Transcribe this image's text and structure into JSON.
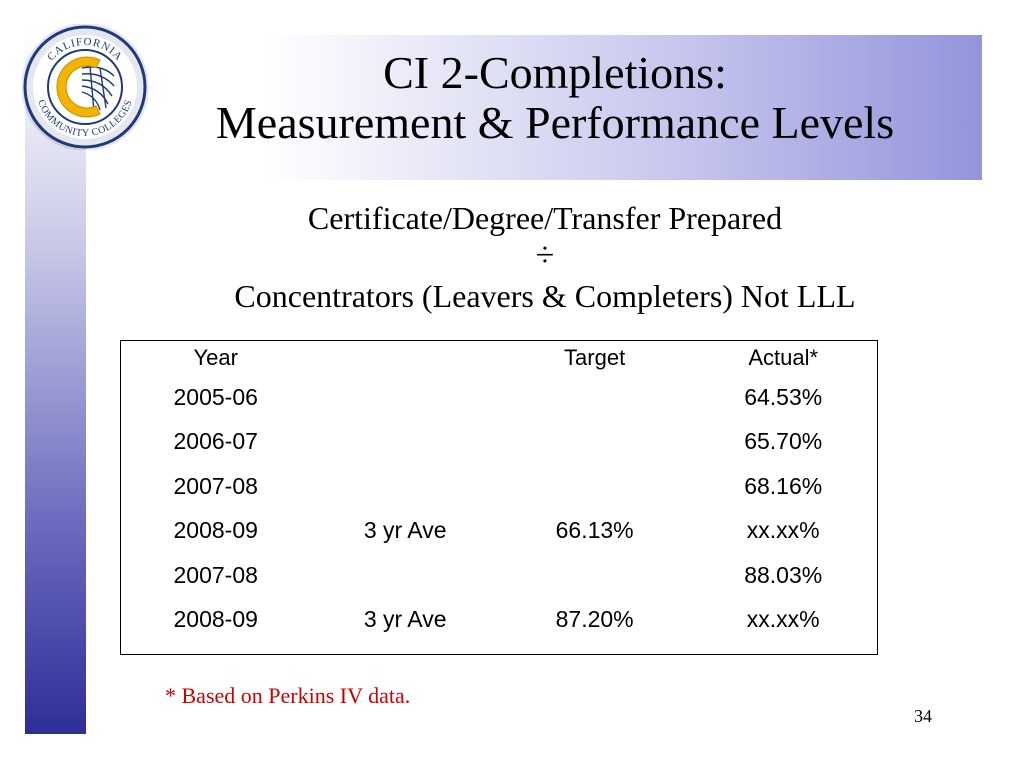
{
  "logo": {
    "text_top": "CALIFORNIA",
    "text_bottom": "COMMUNITY COLLEGES",
    "colors": {
      "ring": "#1f3a7a",
      "c_mark": "#f2b400"
    }
  },
  "title": {
    "line1": "CI 2-Completions:",
    "line2": "Measurement & Performance Levels"
  },
  "formula": {
    "numerator": "Certificate/Degree/Transfer Prepared",
    "operator": "÷",
    "denominator": "Concentrators (Leavers & Completers) Not LLL"
  },
  "table": {
    "headers": [
      "Year",
      "",
      "Target",
      "Actual*"
    ],
    "rows": [
      [
        "2005-06",
        "",
        "",
        "64.53%"
      ],
      [
        "2006-07",
        "",
        "",
        "65.70%"
      ],
      [
        "2007-08",
        "",
        "",
        "68.16%"
      ],
      [
        "2008-09",
        "3 yr Ave",
        "66.13%",
        "xx.xx%"
      ],
      [
        "2007-08",
        "",
        "",
        "88.03%"
      ],
      [
        "2008-09",
        "3 yr Ave",
        "87.20%",
        "xx.xx%"
      ]
    ]
  },
  "footnote": "* Based on Perkins IV data.",
  "page_number": "34",
  "colors": {
    "footnote": "#cc0000",
    "band_gradient_end": "#9494dc",
    "sidebar_gradient_end": "#2e2e99"
  }
}
